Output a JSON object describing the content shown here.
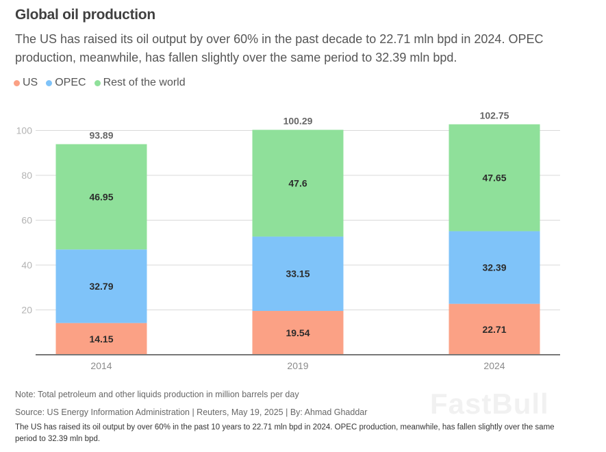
{
  "header": {
    "title": "Global oil production",
    "subtitle": "The US has raised its oil output by over 60% in the past decade to 22.71 mln bpd in 2024. OPEC production, meanwhile, has fallen slightly over the same period to 32.39 mln bpd."
  },
  "legend": [
    {
      "label": "US",
      "color": "#fba185"
    },
    {
      "label": "OPEC",
      "color": "#7fc3f9"
    },
    {
      "label": "Rest of the world",
      "color": "#8fe09a"
    }
  ],
  "chart_data": {
    "type": "bar",
    "stacked": true,
    "title": "Global oil production",
    "xlabel": "",
    "ylabel": "",
    "categories": [
      "2014",
      "2019",
      "2024"
    ],
    "series": [
      {
        "name": "US",
        "color": "#fba185",
        "values": [
          14.15,
          19.54,
          22.71
        ]
      },
      {
        "name": "OPEC",
        "color": "#7fc3f9",
        "values": [
          32.79,
          33.15,
          32.39
        ]
      },
      {
        "name": "Rest of the world",
        "color": "#8fe09a",
        "values": [
          46.95,
          47.6,
          47.65
        ]
      }
    ],
    "totals": [
      "93.89",
      "100.29",
      "102.75"
    ],
    "segment_labels": [
      [
        "14.15",
        "19.54",
        "22.71"
      ],
      [
        "32.79",
        "33.15",
        "32.39"
      ],
      [
        "46.95",
        "47.6",
        "47.65"
      ]
    ],
    "yticks": [
      20,
      40,
      60,
      80,
      100
    ],
    "ylim": [
      0,
      100
    ],
    "grid": true,
    "legend_position": "top-left"
  },
  "footer": {
    "note": "Note: Total petroleum and other liquids production in million barrels per day",
    "source": "Source: US Energy Information Administration | Reuters, May 19, 2025 | By: Ahmad Ghaddar",
    "caption": "The US has raised its oil output by over 60% in the past 10 years to 22.71 mln bpd in 2024. OPEC production, meanwhile, has fallen slightly over the same period to 32.39 mln bpd.",
    "watermark": "FastBull"
  }
}
